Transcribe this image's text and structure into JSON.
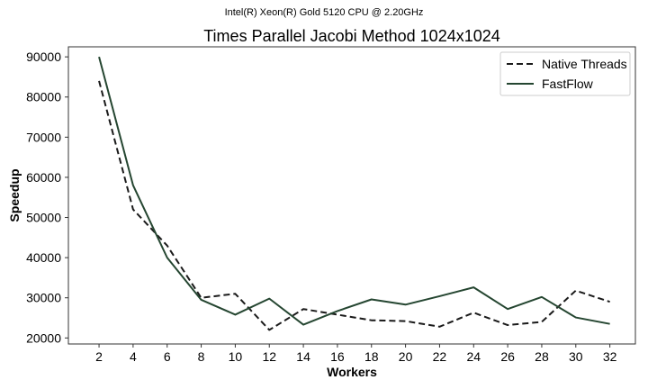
{
  "chart_data": {
    "type": "line",
    "suptitle": "Intel(R) Xeon(R) Gold 5120 CPU @ 2.20GHz",
    "title": "Times Parallel Jacobi Method 1024x1024",
    "xlabel": "Workers",
    "ylabel": "Speedup",
    "x": [
      2,
      4,
      6,
      8,
      10,
      12,
      14,
      16,
      18,
      20,
      22,
      24,
      26,
      28,
      30,
      32
    ],
    "xticks": [
      "2",
      "4",
      "6",
      "8",
      "10",
      "12",
      "14",
      "16",
      "18",
      "20",
      "22",
      "24",
      "26",
      "28",
      "30",
      "32"
    ],
    "yticks": [
      "20000",
      "30000",
      "40000",
      "50000",
      "60000",
      "70000",
      "80000",
      "90000"
    ],
    "ylim": [
      18500,
      92500
    ],
    "xlim": [
      0.2,
      33.5
    ],
    "grid": false,
    "legend_position": "top-right",
    "series": [
      {
        "name": "Native Threads",
        "style": "dashed",
        "color": "#1a1a1a",
        "values": [
          84000,
          52000,
          43000,
          30000,
          31000,
          22000,
          27200,
          25800,
          24400,
          24200,
          22800,
          26300,
          23200,
          24000,
          31800,
          29000
        ]
      },
      {
        "name": "FastFlow",
        "style": "solid",
        "color": "#254631",
        "values": [
          90000,
          58000,
          40000,
          29500,
          25800,
          29800,
          23300,
          26700,
          29600,
          28300,
          30400,
          32600,
          27200,
          30200,
          25100,
          23500
        ]
      }
    ]
  }
}
